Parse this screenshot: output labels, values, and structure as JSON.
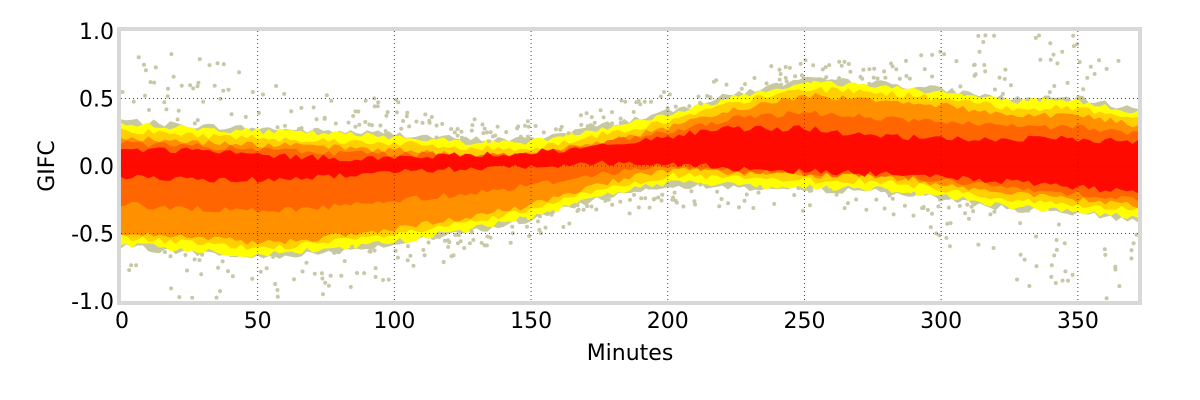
{
  "chart_data": {
    "type": "heatmap",
    "title": "",
    "xlabel": "Minutes",
    "ylabel": "GIFC",
    "xlim": [
      0,
      372
    ],
    "ylim": [
      -1.0,
      1.0
    ],
    "x_ticks": [
      0,
      50,
      100,
      150,
      200,
      250,
      300,
      350
    ],
    "x_tick_labels": [
      "0",
      "50",
      "100",
      "150",
      "200",
      "250",
      "300",
      "350"
    ],
    "y_ticks": [
      -1.0,
      -0.5,
      0.0,
      0.5,
      1.0
    ],
    "y_tick_labels": [
      "-1.0",
      "-0.5",
      "0.0",
      "0.5",
      "1.0"
    ],
    "grid": true,
    "colors": {
      "density_high": "#ff0000",
      "density_mid": "#ff8c00",
      "density_low": "#ffff00",
      "outline": "#c8c8a0",
      "frame": "#d8d8d8"
    },
    "envelope": {
      "x": [
        0,
        25,
        50,
        75,
        100,
        125,
        150,
        175,
        200,
        225,
        250,
        275,
        300,
        325,
        350,
        372
      ],
      "upper": [
        0.32,
        0.28,
        0.26,
        0.24,
        0.22,
        0.18,
        0.18,
        0.28,
        0.38,
        0.52,
        0.62,
        0.6,
        0.55,
        0.48,
        0.48,
        0.4
      ],
      "lower": [
        -0.58,
        -0.62,
        -0.66,
        -0.62,
        -0.56,
        -0.48,
        -0.38,
        -0.22,
        -0.12,
        -0.14,
        -0.16,
        -0.16,
        -0.22,
        -0.3,
        -0.34,
        -0.38
      ],
      "core_upper": [
        0.12,
        0.12,
        0.08,
        0.06,
        0.06,
        0.08,
        0.1,
        0.14,
        0.22,
        0.28,
        0.28,
        0.22,
        0.2,
        0.2,
        0.2,
        0.18
      ],
      "core_lower": [
        -0.08,
        -0.1,
        -0.1,
        -0.08,
        -0.04,
        -0.02,
        0.0,
        0.02,
        0.02,
        -0.02,
        -0.04,
        -0.06,
        -0.08,
        -0.12,
        -0.16,
        -0.2
      ]
    }
  }
}
